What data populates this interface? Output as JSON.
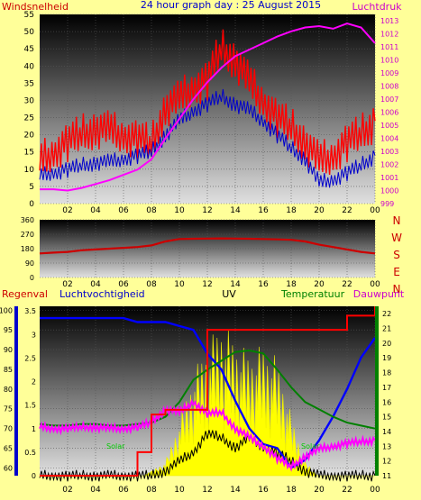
{
  "colors": {
    "background": "#FFFF99",
    "wind_speed": "#FF0000",
    "wind_gust": "#FF0000",
    "wind_avg": "#0000CC",
    "pressure": "#FF00FF",
    "direction": "#CC0000",
    "rain": "#FF0000",
    "humidity": "#0000FF",
    "temperature": "#008000",
    "dewpoint": "#FF00FF",
    "uv": "#FFFF00",
    "solar": "#000000",
    "axis_left": "#0000CC",
    "axis_right": "#008000"
  },
  "x_tick_labels": [
    "02",
    "04",
    "06",
    "08",
    "10",
    "12",
    "14",
    "16",
    "18",
    "20",
    "22",
    "00"
  ],
  "chart_data": [
    {
      "type": "line",
      "title": "24 hour graph day : 25 August 2015",
      "left_label": "Windsnelheid",
      "right_label": "Luchtdruk",
      "ylim_left": [
        0,
        55
      ],
      "y_ticks_left": [
        0,
        5,
        10,
        15,
        20,
        25,
        30,
        35,
        40,
        45,
        50,
        55
      ],
      "ylim_right": [
        999,
        1013.5
      ],
      "y_ticks_right": [
        999,
        1000,
        1001,
        1002,
        1003,
        1004,
        1005,
        1006,
        1007,
        1008,
        1009,
        1010,
        1011,
        1012,
        1013
      ],
      "x": [
        0,
        1,
        2,
        3,
        4,
        5,
        6,
        7,
        8,
        9,
        10,
        11,
        12,
        13,
        14,
        15,
        16,
        17,
        18,
        19,
        20,
        21,
        22,
        23,
        24
      ],
      "series": [
        {
          "role": "gust",
          "axis": "left",
          "values": [
            12,
            15,
            18,
            20,
            22,
            21,
            20,
            19,
            17,
            28,
            30,
            34,
            36,
            45,
            42,
            35,
            30,
            25,
            22,
            18,
            12,
            14,
            18,
            20,
            24
          ]
        },
        {
          "role": "avg",
          "axis": "left",
          "values": [
            8,
            9,
            10,
            11,
            12,
            12,
            13,
            14,
            15,
            20,
            24,
            27,
            29,
            31,
            29,
            27,
            24,
            20,
            16,
            13,
            6,
            7,
            9,
            11,
            14
          ]
        },
        {
          "role": "pressure",
          "axis": "right",
          "values": [
            1000.1,
            1000.1,
            1000.0,
            1000.2,
            1000.5,
            1000.8,
            1001.2,
            1001.6,
            1002.4,
            1004.0,
            1005.5,
            1007.0,
            1008.3,
            1009.4,
            1010.3,
            1010.8,
            1011.3,
            1011.8,
            1012.2,
            1012.5,
            1012.6,
            1012.4,
            1012.8,
            1012.5,
            1011.3
          ]
        }
      ]
    },
    {
      "type": "line",
      "ylim": [
        0,
        360
      ],
      "y_ticks": [
        0,
        90,
        180,
        270,
        360
      ],
      "compass_labels": [
        "N",
        "W",
        "S",
        "E",
        "N"
      ],
      "x": [
        0,
        1,
        2,
        3,
        4,
        5,
        6,
        7,
        8,
        9,
        10,
        11,
        12,
        13,
        14,
        15,
        16,
        17,
        18,
        19,
        20,
        21,
        22,
        23,
        24
      ],
      "values": [
        150,
        155,
        160,
        170,
        175,
        180,
        185,
        190,
        200,
        225,
        240,
        242,
        243,
        244,
        243,
        242,
        240,
        238,
        235,
        225,
        205,
        190,
        175,
        160,
        150
      ]
    },
    {
      "type": "line",
      "labels": {
        "rain": "Regenval",
        "humidity": "Luchtvochtigheid",
        "uv": "UV",
        "temperature": "Temperatuur",
        "dewpoint": "Dauwpunt",
        "solar_left": "Solar",
        "solar_right": "Solar"
      },
      "ylim_humidity": [
        58,
        101
      ],
      "y_ticks_humidity": [
        60,
        65,
        70,
        75,
        80,
        85,
        90,
        95,
        100
      ],
      "ylim_rain": [
        0,
        3.6
      ],
      "y_ticks_rain": [
        0,
        0.5,
        1,
        1.5,
        2,
        2.5,
        3,
        3.5
      ],
      "ylim_temp": [
        11,
        22.5
      ],
      "y_ticks_temp": [
        11,
        12,
        13,
        14,
        15,
        16,
        17,
        18,
        19,
        20,
        21,
        22
      ],
      "x": [
        0,
        1,
        2,
        3,
        4,
        5,
        6,
        7,
        8,
        9,
        10,
        11,
        12,
        13,
        14,
        15,
        16,
        17,
        18,
        19,
        20,
        21,
        22,
        23,
        24
      ],
      "rain": [
        0,
        0,
        0,
        0,
        0,
        0,
        0,
        0.5,
        1.3,
        1.4,
        1.4,
        1.4,
        3.1,
        3.1,
        3.1,
        3.1,
        3.1,
        3.1,
        3.1,
        3.1,
        3.1,
        3.1,
        3.4,
        3.4,
        3.6
      ],
      "humidity": [
        98,
        98,
        98,
        98,
        98,
        98,
        98,
        97,
        97,
        97,
        96,
        95,
        89,
        85,
        77,
        70,
        66,
        65,
        60,
        62,
        67,
        73,
        80,
        88,
        93
      ],
      "temperature": [
        14.5,
        14.4,
        14.4,
        14.5,
        14.5,
        14.4,
        14.4,
        14.5,
        14.6,
        15.0,
        16.0,
        17.5,
        18.2,
        18.8,
        19.4,
        19.5,
        19.3,
        18.2,
        17.0,
        16.0,
        15.5,
        15.0,
        14.6,
        14.4,
        14.2
      ],
      "dewpoint": [
        14.3,
        14.2,
        14.2,
        14.3,
        14.3,
        14.2,
        14.2,
        14.3,
        14.6,
        15.5,
        15.3,
        16.0,
        15.2,
        15.3,
        14.2,
        13.6,
        13.0,
        12.2,
        11.6,
        12.3,
        12.8,
        13.0,
        13.2,
        13.3,
        13.4
      ],
      "uv": [
        0,
        0,
        0,
        0,
        0,
        0,
        0,
        0,
        0.1,
        0.3,
        1.2,
        2.2,
        2.8,
        3.3,
        2.9,
        2.6,
        2.8,
        2.5,
        1.3,
        0.3,
        0,
        0,
        0,
        0,
        0
      ],
      "solar": [
        0,
        0,
        0,
        0,
        0,
        0,
        0,
        0,
        0,
        0.1,
        0.3,
        0.5,
        0.9,
        0.8,
        0.6,
        0.8,
        0.6,
        0.5,
        0.3,
        0.1,
        0,
        0,
        0,
        0,
        0
      ]
    }
  ]
}
